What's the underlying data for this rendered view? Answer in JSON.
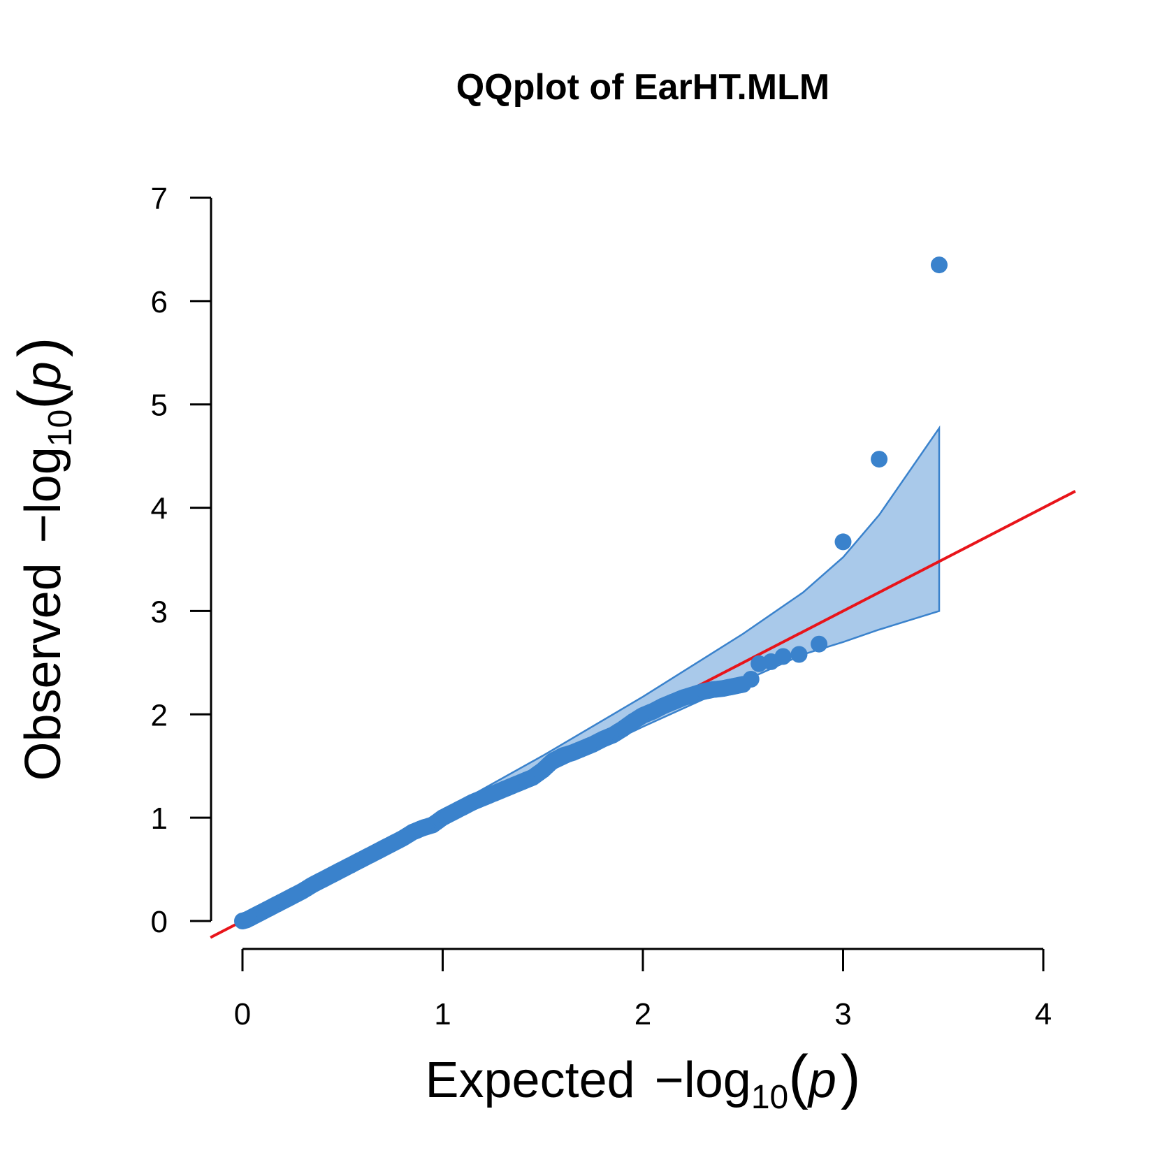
{
  "chart_data": {
    "type": "scatter",
    "title": "QQplot of EarHT.MLM",
    "xlabel": {
      "prefix": "Expected",
      "minus": "−",
      "log": "log",
      "base": "10",
      "open": "(",
      "var": "p",
      "close": ")"
    },
    "ylabel": {
      "prefix": "Observed",
      "minus": "−",
      "log": "log",
      "base": "10",
      "open": "(",
      "var": "p",
      "close": ")"
    },
    "xlim": [
      0,
      4
    ],
    "ylim": [
      0,
      7
    ],
    "x_ticks": [
      "0",
      "1",
      "2",
      "3",
      "4"
    ],
    "y_ticks": [
      "0",
      "1",
      "2",
      "3",
      "4",
      "5",
      "6",
      "7"
    ],
    "grid": false,
    "colors": {
      "points": "#3a82cc",
      "reference_line": "#e8141a",
      "band_fill": "#a9c9ea",
      "band_edge": "#3a82cc"
    },
    "reference_line": {
      "slope": 1,
      "intercept": 0
    },
    "confidence_band": {
      "x": [
        0.0,
        0.5,
        1.0,
        1.5,
        2.0,
        2.5,
        2.8,
        3.0,
        3.18,
        3.48
      ],
      "upper": [
        0.0,
        0.52,
        1.06,
        1.6,
        2.17,
        2.78,
        3.18,
        3.52,
        3.93,
        4.77
      ],
      "lower": [
        0.0,
        0.48,
        0.95,
        1.42,
        1.88,
        2.32,
        2.58,
        2.7,
        2.82,
        3.0
      ]
    },
    "series": [
      {
        "x": [
          0.0,
          0.02,
          0.05,
          0.08,
          0.12,
          0.16,
          0.2,
          0.25,
          0.3,
          0.35,
          0.4,
          0.45,
          0.5,
          0.55,
          0.6,
          0.65,
          0.7,
          0.75,
          0.8,
          0.85,
          0.9,
          0.95,
          1.0,
          1.05,
          1.1,
          1.15,
          1.2,
          1.25,
          1.3,
          1.35,
          1.4,
          1.45,
          1.5,
          1.55,
          1.6,
          1.65,
          1.7,
          1.75,
          1.8,
          1.85,
          1.9,
          1.95,
          2.0,
          2.05,
          2.1,
          2.15,
          2.2,
          2.25,
          2.3,
          2.35,
          2.4,
          2.45,
          2.5,
          2.54,
          2.58,
          2.64,
          2.7,
          2.78,
          2.88,
          3.0,
          3.18,
          3.48
        ],
        "y": [
          0.0,
          0.01,
          0.04,
          0.07,
          0.11,
          0.15,
          0.19,
          0.24,
          0.29,
          0.35,
          0.4,
          0.45,
          0.5,
          0.55,
          0.6,
          0.65,
          0.7,
          0.75,
          0.8,
          0.86,
          0.9,
          0.93,
          1.0,
          1.05,
          1.1,
          1.15,
          1.19,
          1.23,
          1.27,
          1.31,
          1.35,
          1.39,
          1.46,
          1.55,
          1.6,
          1.63,
          1.67,
          1.71,
          1.76,
          1.8,
          1.86,
          1.93,
          1.99,
          2.03,
          2.08,
          2.12,
          2.16,
          2.19,
          2.22,
          2.24,
          2.25,
          2.27,
          2.29,
          2.34,
          2.49,
          2.51,
          2.56,
          2.58,
          2.68,
          3.67,
          4.47,
          6.35
        ]
      }
    ]
  }
}
